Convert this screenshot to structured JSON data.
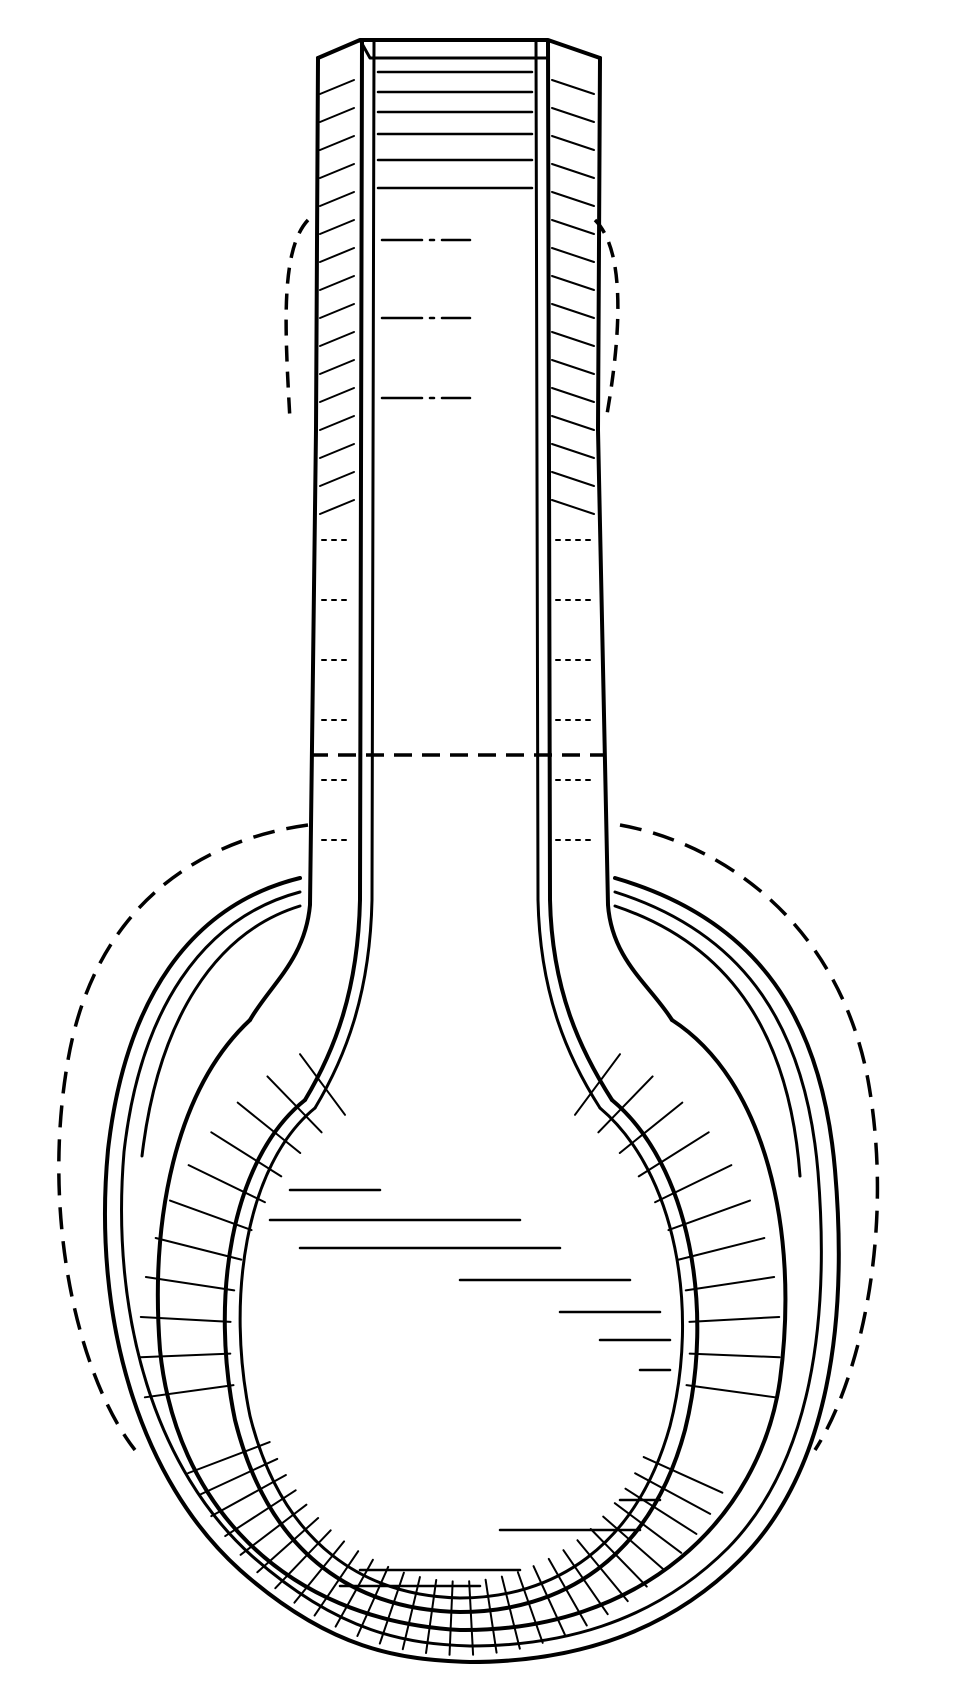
{
  "figure": {
    "style": "patent line drawing",
    "subject": "headphone-ear-cup-and-headband",
    "line_color": "#000000",
    "background_color": "#ffffff",
    "dashed_outlines": [
      "headband-phantom-left",
      "headband-phantom-right",
      "headband-break-line",
      "ear-cushion-phantom-outline"
    ],
    "shading_regions": [
      "headband-top-band",
      "headband-left-bevel",
      "headband-right-bevel",
      "cup-left-bevel",
      "cup-right-bevel",
      "cup-bottom-bevel",
      "cup-interior-surface"
    ]
  }
}
